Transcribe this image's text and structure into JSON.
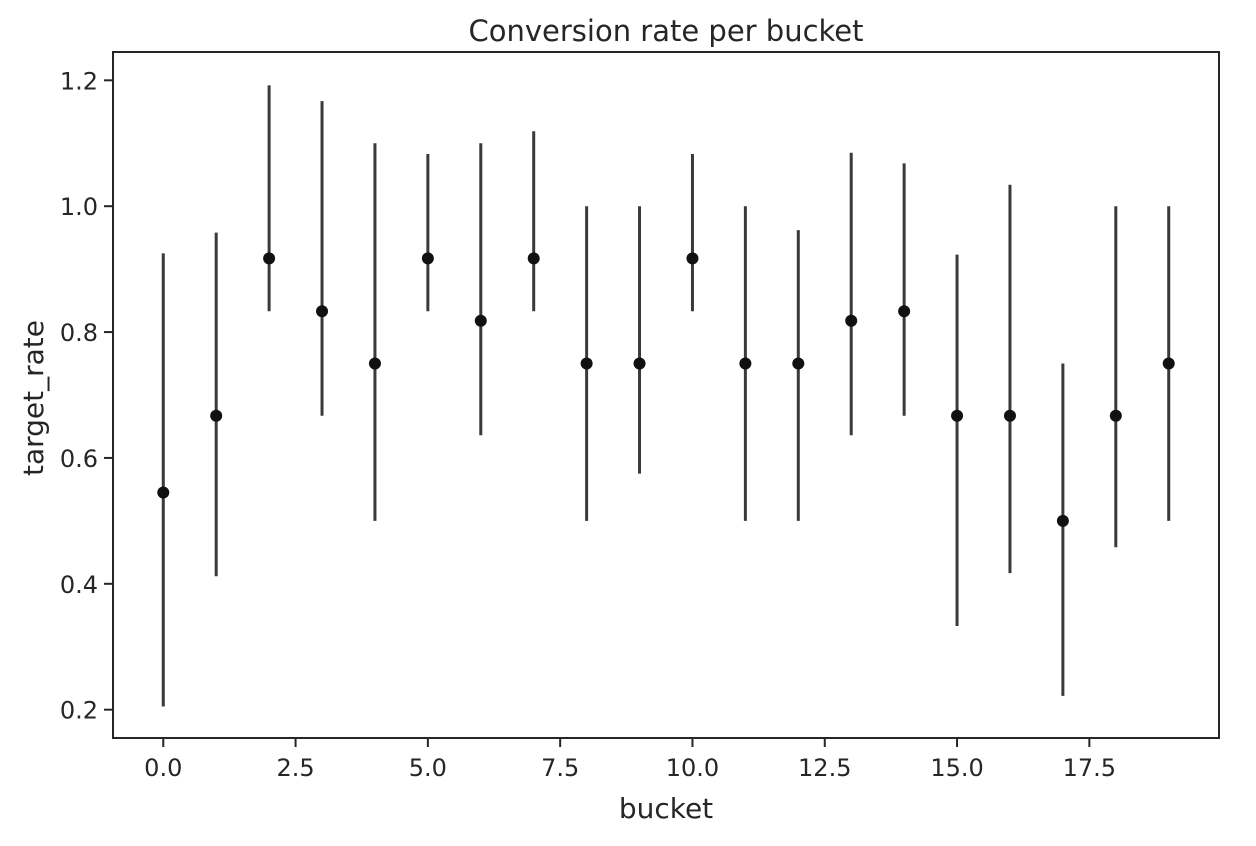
{
  "chart_data": {
    "type": "scatter",
    "title": "Conversion rate per bucket",
    "xlabel": "bucket",
    "ylabel": "target_rate",
    "xlim": [
      -0.95,
      19.95
    ],
    "ylim": [
      0.155,
      1.245
    ],
    "xticks": [
      0.0,
      2.5,
      5.0,
      7.5,
      10.0,
      12.5,
      15.0,
      17.5
    ],
    "xtick_labels": [
      "0.0",
      "2.5",
      "5.0",
      "7.5",
      "10.0",
      "12.5",
      "15.0",
      "17.5"
    ],
    "yticks": [
      0.2,
      0.4,
      0.6,
      0.8,
      1.0,
      1.2
    ],
    "ytick_labels": [
      "0.2",
      "0.4",
      "0.6",
      "0.8",
      "1.0",
      "1.2"
    ],
    "grid": false,
    "marker_color": "#111111",
    "errorbar_color": "#3a3a3a",
    "x": [
      0,
      1,
      2,
      3,
      4,
      5,
      6,
      7,
      8,
      9,
      10,
      11,
      12,
      13,
      14,
      15,
      16,
      17,
      18,
      19
    ],
    "y": [
      0.545,
      0.667,
      0.917,
      0.833,
      0.75,
      0.917,
      0.818,
      0.917,
      0.75,
      0.75,
      0.917,
      0.75,
      0.75,
      0.818,
      0.833,
      0.667,
      0.667,
      0.5,
      0.667,
      0.75
    ],
    "y_low": [
      0.205,
      0.412,
      0.833,
      0.667,
      0.5,
      0.833,
      0.636,
      0.833,
      0.5,
      0.575,
      0.833,
      0.5,
      0.5,
      0.636,
      0.667,
      0.333,
      0.417,
      0.222,
      0.458,
      0.5
    ],
    "y_high": [
      0.925,
      0.958,
      1.192,
      1.167,
      1.1,
      1.083,
      1.1,
      1.119,
      1.0,
      1.0,
      1.083,
      1.0,
      0.962,
      1.085,
      1.068,
      0.923,
      1.034,
      0.75,
      1.0,
      1.0
    ]
  }
}
